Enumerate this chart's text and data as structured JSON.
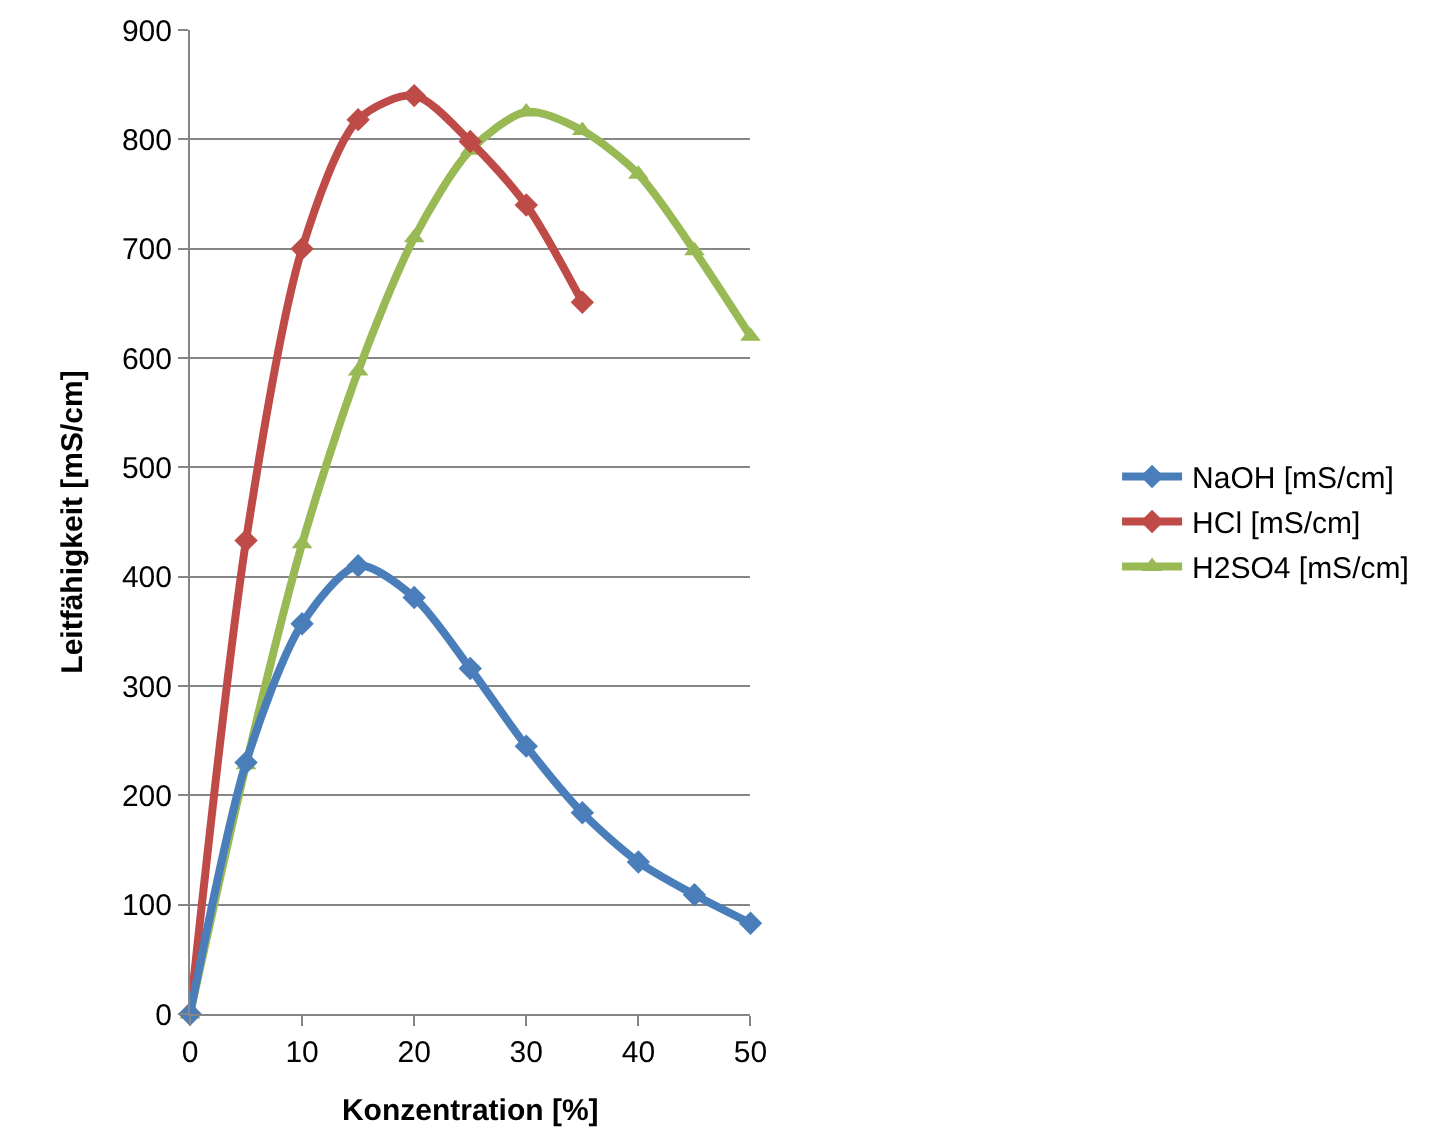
{
  "chart_data": {
    "type": "line",
    "xlabel": "Konzentration [%]",
    "ylabel": "Leitfähigkeit [mS/cm]",
    "xlim": [
      0,
      50
    ],
    "xticks": [
      0,
      10,
      20,
      30,
      40,
      50
    ],
    "ylim": [
      0,
      900
    ],
    "yticks": [
      0,
      100,
      200,
      300,
      400,
      500,
      600,
      700,
      800,
      900
    ],
    "grid": "y",
    "legend": "right",
    "series": [
      {
        "name": "NaOH [mS/cm]",
        "color": "#4a7ebb",
        "marker": "diamond",
        "x": [
          0,
          5,
          10,
          15,
          20,
          25,
          30,
          35,
          40,
          45,
          50
        ],
        "values": [
          0,
          230,
          357,
          410,
          381,
          316,
          245,
          184,
          139,
          109,
          83
        ]
      },
      {
        "name": "HCl [mS/cm]",
        "color": "#be4b48",
        "marker": "diamond",
        "x": [
          0,
          5,
          10,
          15,
          20,
          25,
          30,
          35
        ],
        "values": [
          0,
          433,
          700,
          818,
          840,
          798,
          740,
          651
        ]
      },
      {
        "name": "H2SO4 [mS/cm]",
        "color": "#98b954",
        "marker": "triangle",
        "x": [
          0,
          5,
          10,
          15,
          20,
          25,
          30,
          35,
          40,
          45,
          50
        ],
        "values": [
          0,
          228,
          430,
          588,
          710,
          790,
          825,
          808,
          768,
          698,
          620
        ]
      }
    ]
  }
}
